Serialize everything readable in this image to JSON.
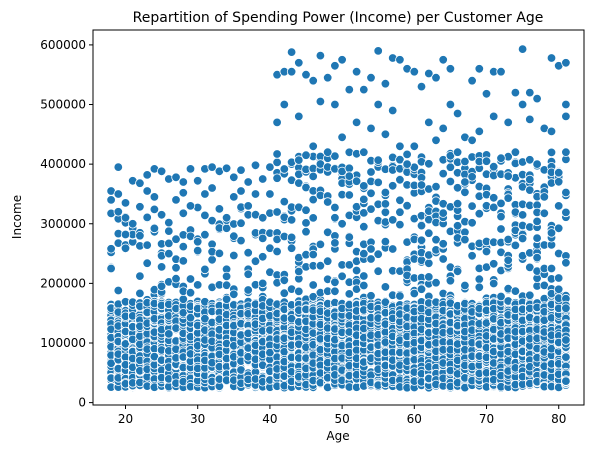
{
  "chart_data": {
    "type": "scatter",
    "title": "Repartition of Spending Power (Income) per Customer Age",
    "xlabel": "Age",
    "ylabel": "Income",
    "xlim": [
      15.5,
      83.5
    ],
    "ylim": [
      -4000,
      625000
    ],
    "xticks": [
      20,
      30,
      40,
      50,
      60,
      70,
      80
    ],
    "yticks": [
      0,
      100000,
      200000,
      300000,
      400000,
      500000,
      600000
    ],
    "xtick_labels": [
      "20",
      "30",
      "40",
      "50",
      "60",
      "70",
      "80"
    ],
    "ytick_labels": [
      "0",
      "100000",
      "200000",
      "300000",
      "400000",
      "500000",
      "600000"
    ],
    "grid": false,
    "marker_color": "#1f77b4",
    "series": [
      {
        "points_description": "dense band per integer age 18-81",
        "ages": [
          18,
          81
        ],
        "dense_band_income": [
          25000,
          200000
        ],
        "dense_band_income_age_40_plus": [
          25000,
          300000
        ],
        "sparse_upper_income_age_18_42": [
          200000,
          400000
        ],
        "sparse_upper_income_age_42_81": [
          300000,
          590000
        ],
        "sample_points": [
          [
            18,
            355000
          ],
          [
            18,
            340000
          ],
          [
            18,
            258000
          ],
          [
            18,
            225000
          ],
          [
            19,
            395000
          ],
          [
            19,
            350000
          ],
          [
            19,
            320000
          ],
          [
            20,
            335000
          ],
          [
            20,
            310000
          ],
          [
            20,
            282000
          ],
          [
            21,
            372000
          ],
          [
            21,
            300000
          ],
          [
            22,
            368000
          ],
          [
            22,
            280000
          ],
          [
            23,
            382000
          ],
          [
            23,
            355000
          ],
          [
            24,
            392000
          ],
          [
            24,
            345000
          ],
          [
            25,
            388000
          ],
          [
            25,
            315000
          ],
          [
            26,
            375000
          ],
          [
            26,
            250000
          ],
          [
            27,
            378000
          ],
          [
            27,
            340000
          ],
          [
            28,
            370000
          ],
          [
            28,
            352000
          ],
          [
            29,
            392000
          ],
          [
            29,
            330000
          ],
          [
            30,
            372000
          ],
          [
            30,
            255000
          ],
          [
            31,
            392000
          ],
          [
            31,
            350000
          ],
          [
            32,
            395000
          ],
          [
            32,
            360000
          ],
          [
            33,
            388000
          ],
          [
            33,
            325000
          ],
          [
            34,
            393000
          ],
          [
            34,
            310000
          ],
          [
            35,
            378000
          ],
          [
            35,
            345000
          ],
          [
            36,
            390000
          ],
          [
            36,
            355000
          ],
          [
            37,
            370000
          ],
          [
            37,
            330000
          ],
          [
            38,
            398000
          ],
          [
            38,
            350000
          ],
          [
            39,
            375000
          ],
          [
            39,
            310000
          ],
          [
            40,
            395000
          ],
          [
            40,
            350000
          ],
          [
            41,
            470000
          ],
          [
            41,
            550000
          ],
          [
            42,
            555000
          ],
          [
            42,
            500000
          ],
          [
            43,
            588000
          ],
          [
            43,
            555000
          ],
          [
            44,
            570000
          ],
          [
            44,
            480000
          ],
          [
            45,
            550000
          ],
          [
            45,
            415000
          ],
          [
            46,
            540000
          ],
          [
            46,
            430000
          ],
          [
            47,
            582000
          ],
          [
            47,
            505000
          ],
          [
            48,
            545000
          ],
          [
            48,
            420000
          ],
          [
            49,
            565000
          ],
          [
            49,
            500000
          ],
          [
            50,
            575000
          ],
          [
            50,
            445000
          ],
          [
            51,
            525000
          ],
          [
            51,
            380000
          ],
          [
            52,
            555000
          ],
          [
            52,
            470000
          ],
          [
            53,
            525000
          ],
          [
            53,
            420000
          ],
          [
            54,
            545000
          ],
          [
            54,
            460000
          ],
          [
            55,
            590000
          ],
          [
            55,
            500000
          ],
          [
            56,
            535000
          ],
          [
            56,
            450000
          ],
          [
            57,
            578000
          ],
          [
            57,
            490000
          ],
          [
            58,
            575000
          ],
          [
            58,
            430000
          ],
          [
            59,
            560000
          ],
          [
            59,
            400000
          ],
          [
            60,
            555000
          ],
          [
            60,
            430000
          ],
          [
            61,
            530000
          ],
          [
            61,
            365000
          ],
          [
            62,
            552000
          ],
          [
            62,
            470000
          ],
          [
            63,
            545000
          ],
          [
            63,
            440000
          ],
          [
            64,
            575000
          ],
          [
            64,
            460000
          ],
          [
            65,
            560000
          ],
          [
            65,
            500000
          ],
          [
            66,
            485000
          ],
          [
            66,
            420000
          ],
          [
            67,
            445000
          ],
          [
            67,
            370000
          ],
          [
            68,
            540000
          ],
          [
            68,
            440000
          ],
          [
            69,
            560000
          ],
          [
            69,
            455000
          ],
          [
            70,
            518000
          ],
          [
            70,
            405000
          ],
          [
            71,
            555000
          ],
          [
            71,
            480000
          ],
          [
            72,
            555000
          ],
          [
            72,
            410000
          ],
          [
            73,
            470000
          ],
          [
            73,
            380000
          ],
          [
            74,
            520000
          ],
          [
            74,
            420000
          ],
          [
            75,
            593000
          ],
          [
            75,
            500000
          ],
          [
            76,
            520000
          ],
          [
            76,
            475000
          ],
          [
            77,
            510000
          ],
          [
            77,
            400000
          ],
          [
            78,
            345000
          ],
          [
            78,
            460000
          ],
          [
            79,
            578000
          ],
          [
            79,
            455000
          ],
          [
            80,
            565000
          ],
          [
            80,
            330000
          ],
          [
            81,
            570000
          ],
          [
            81,
            500000
          ],
          [
            81,
            420000
          ],
          [
            81,
            480000
          ]
        ]
      }
    ]
  }
}
